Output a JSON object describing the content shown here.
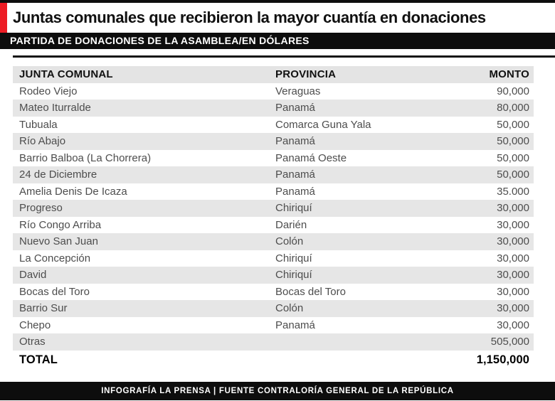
{
  "header": {
    "title": "Juntas comunales que recibieron la mayor cuantía en donaciones",
    "subtitle": "PARTIDA DE DONACIONES DE LA ASAMBLEA/EN DÓLARES"
  },
  "table": {
    "columns": [
      "JUNTA COMUNAL",
      "PROVINCIA",
      "MONTO"
    ],
    "rows": [
      {
        "junta": "Rodeo Viejo",
        "provincia": "Veraguas",
        "monto": "90,000"
      },
      {
        "junta": "Mateo Iturralde",
        "provincia": "Panamá",
        "monto": "80,000"
      },
      {
        "junta": "Tubuala",
        "provincia": "Comarca Guna Yala",
        "monto": "50,000"
      },
      {
        "junta": "Río Abajo",
        "provincia": "Panamá",
        "monto": "50,000"
      },
      {
        "junta": "Barrio Balboa (La Chorrera)",
        "provincia": "Panamá Oeste",
        "monto": "50,000"
      },
      {
        "junta": "24 de Diciembre",
        "provincia": "Panamá",
        "monto": "50,000"
      },
      {
        "junta": "Amelia Denis De Icaza",
        "provincia": "Panamá",
        "monto": "35.000"
      },
      {
        "junta": "Progreso",
        "provincia": "Chiriquí",
        "monto": "30,000"
      },
      {
        "junta": "Río Congo Arriba",
        "provincia": "Darién",
        "monto": "30,000"
      },
      {
        "junta": "Nuevo San Juan",
        "provincia": "Colón",
        "monto": "30,000"
      },
      {
        "junta": "La Concepción",
        "provincia": "Chiriquí",
        "monto": "30,000"
      },
      {
        "junta": "David",
        "provincia": "Chiriquí",
        "monto": "30,000"
      },
      {
        "junta": "Bocas del Toro",
        "provincia": "Bocas del Toro",
        "monto": "30,000"
      },
      {
        "junta": "Barrio Sur",
        "provincia": "Colón",
        "monto": "30,000"
      },
      {
        "junta": "Chepo",
        "provincia": "Panamá",
        "monto": "30,000"
      },
      {
        "junta": "Otras",
        "provincia": "",
        "monto": "505,000"
      }
    ],
    "total": {
      "label": "TOTAL",
      "monto": "1,150,000"
    }
  },
  "footer": {
    "credit": "INFOGRAFÍA LA PRENSA | FUENTE CONTRALORÍA GENERAL DE LA REPÚBLICA"
  },
  "colors": {
    "accent_red": "#ed1c24",
    "bar_black": "#0d0d0d",
    "row_gray": "#e6e6e6",
    "header_gray": "#e4e4e4",
    "data_text": "#4d4d4d"
  },
  "chart_data": {
    "type": "table",
    "title": "Juntas comunales que recibieron la mayor cuantía en donaciones",
    "subtitle": "PARTIDA DE DONACIONES DE LA ASAMBLEA/EN DÓLARES",
    "columns": [
      "JUNTA COMUNAL",
      "PROVINCIA",
      "MONTO"
    ],
    "rows": [
      [
        "Rodeo Viejo",
        "Veraguas",
        90000
      ],
      [
        "Mateo Iturralde",
        "Panamá",
        80000
      ],
      [
        "Tubuala",
        "Comarca Guna Yala",
        50000
      ],
      [
        "Río Abajo",
        "Panamá",
        50000
      ],
      [
        "Barrio Balboa (La Chorrera)",
        "Panamá Oeste",
        50000
      ],
      [
        "24 de Diciembre",
        "Panamá",
        50000
      ],
      [
        "Amelia Denis De Icaza",
        "Panamá",
        35000
      ],
      [
        "Progreso",
        "Chiriquí",
        30000
      ],
      [
        "Río Congo Arriba",
        "Darién",
        30000
      ],
      [
        "Nuevo San Juan",
        "Colón",
        30000
      ],
      [
        "La Concepción",
        "Chiriquí",
        30000
      ],
      [
        "David",
        "Chiriquí",
        30000
      ],
      [
        "Bocas del Toro",
        "Bocas del Toro",
        30000
      ],
      [
        "Barrio Sur",
        "Colón",
        30000
      ],
      [
        "Chepo",
        "Panamá",
        30000
      ],
      [
        "Otras",
        "",
        505000
      ]
    ],
    "total": 1150000,
    "source": "INFOGRAFÍA LA PRENSA | FUENTE CONTRALORÍA GENERAL DE LA REPÚBLICA"
  }
}
